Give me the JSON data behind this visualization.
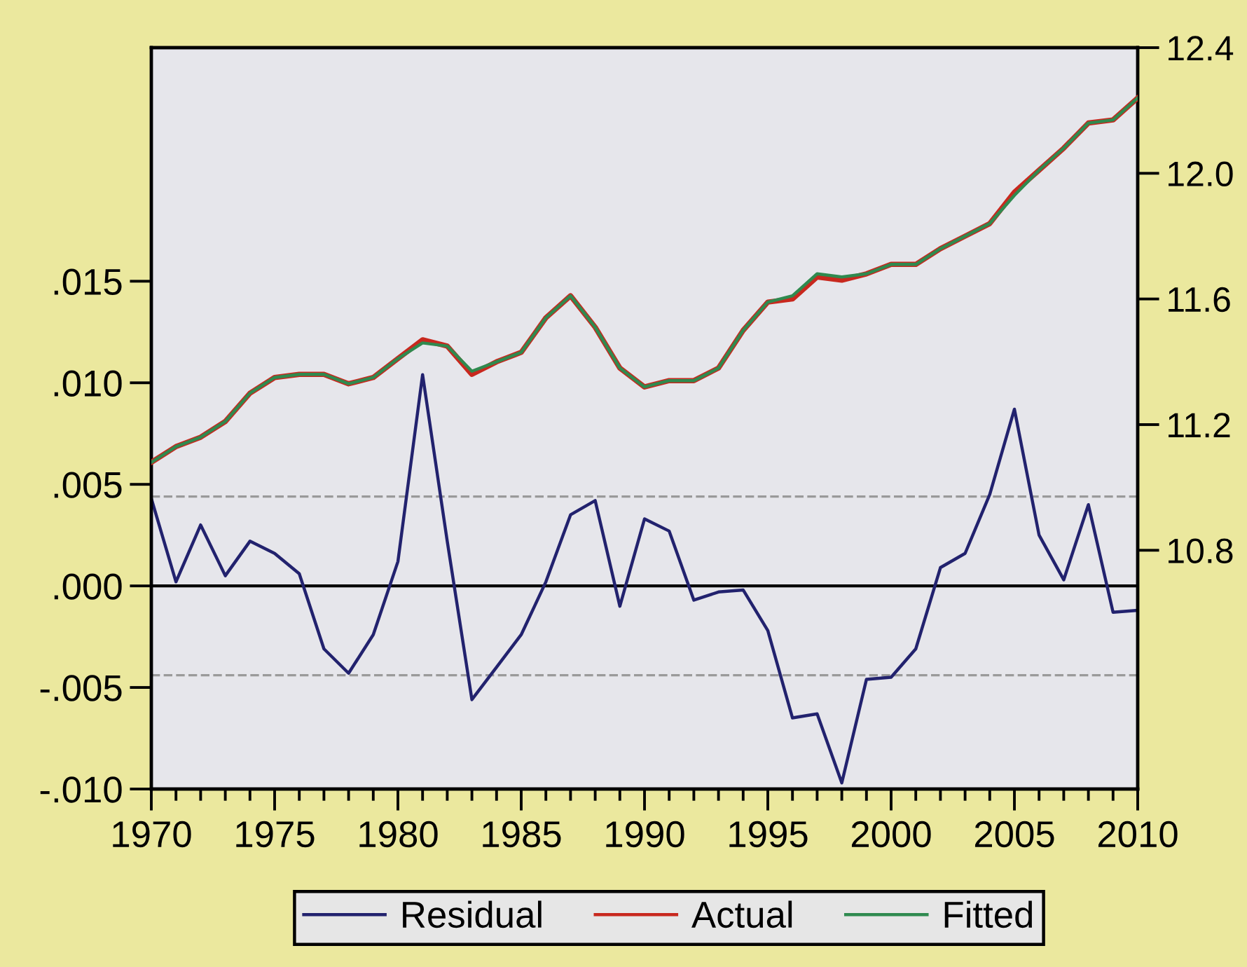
{
  "chart_data": {
    "type": "line",
    "x": [
      1970,
      1971,
      1972,
      1973,
      1974,
      1975,
      1976,
      1977,
      1978,
      1979,
      1980,
      1981,
      1982,
      1983,
      1984,
      1985,
      1986,
      1987,
      1988,
      1989,
      1990,
      1991,
      1992,
      1993,
      1994,
      1995,
      1996,
      1997,
      1998,
      1999,
      2000,
      2001,
      2002,
      2003,
      2004,
      2005,
      2006,
      2007,
      2008,
      2009,
      2010
    ],
    "series": [
      {
        "name": "Residual",
        "color": "#22226e",
        "values": [
          0.0043,
          0.0002,
          0.003,
          0.0005,
          0.0022,
          0.0016,
          0.0006,
          -0.0031,
          -0.0043,
          -0.0024,
          0.0012,
          0.0104,
          0.0022,
          -0.0056,
          -0.004,
          -0.0024,
          0.0002,
          0.0035,
          0.0042,
          -0.001,
          0.0033,
          0.0027,
          -0.0007,
          -0.0003,
          -0.0002,
          -0.0022,
          -0.0065,
          -0.0063,
          -0.0097,
          -0.0046,
          -0.0045,
          -0.0031,
          0.0009,
          0.0016,
          0.0045,
          0.0087,
          0.0025,
          0.0003,
          0.004,
          -0.0013,
          -0.0012
        ]
      },
      {
        "name": "Actual",
        "color": "#c8281e",
        "axis": "y2",
        "values": [
          11.08,
          11.13,
          11.16,
          11.21,
          11.3,
          11.35,
          11.36,
          11.36,
          11.33,
          11.35,
          11.41,
          11.47,
          11.45,
          11.36,
          11.4,
          11.43,
          11.54,
          11.61,
          11.51,
          11.38,
          11.32,
          11.34,
          11.34,
          11.38,
          11.5,
          11.59,
          11.6,
          11.67,
          11.66,
          11.68,
          11.71,
          11.71,
          11.76,
          11.8,
          11.84,
          11.94,
          12.01,
          12.08,
          12.16,
          12.17,
          12.24
        ]
      },
      {
        "name": "Fitted",
        "color": "#2f8a4f",
        "axis": "y2",
        "values": [
          11.08,
          11.13,
          11.16,
          11.21,
          11.3,
          11.35,
          11.36,
          11.36,
          11.33,
          11.35,
          11.41,
          11.46,
          11.45,
          11.37,
          11.4,
          11.43,
          11.54,
          11.61,
          11.51,
          11.38,
          11.32,
          11.34,
          11.34,
          11.38,
          11.5,
          11.59,
          11.61,
          11.68,
          11.67,
          11.68,
          11.71,
          11.71,
          11.76,
          11.8,
          11.84,
          11.93,
          12.01,
          12.08,
          12.16,
          12.17,
          12.24
        ]
      }
    ],
    "xlim": [
      1970,
      2010
    ],
    "xticks": [
      1970,
      {
        "value": 1971,
        "label": null
      },
      {
        "value": 1972,
        "label": null
      },
      {
        "value": 1973,
        "label": null
      },
      {
        "value": 1974,
        "label": null
      },
      1975,
      {
        "value": 1976,
        "label": null
      },
      {
        "value": 1977,
        "label": null
      },
      {
        "value": 1978,
        "label": null
      },
      {
        "value": 1979,
        "label": null
      },
      1980,
      {
        "value": 1981,
        "label": null
      },
      {
        "value": 1982,
        "label": null
      },
      {
        "value": 1983,
        "label": null
      },
      {
        "value": 1984,
        "label": null
      },
      1985,
      {
        "value": 1986,
        "label": null
      },
      {
        "value": 1987,
        "label": null
      },
      {
        "value": 1988,
        "label": null
      },
      {
        "value": 1989,
        "label": null
      },
      1990,
      {
        "value": 1991,
        "label": null
      },
      {
        "value": 1992,
        "label": null
      },
      {
        "value": 1993,
        "label": null
      },
      {
        "value": 1994,
        "label": null
      },
      1995,
      {
        "value": 1996,
        "label": null
      },
      {
        "value": 1997,
        "label": null
      },
      {
        "value": 1998,
        "label": null
      },
      {
        "value": 1999,
        "label": null
      },
      2000,
      {
        "value": 2001,
        "label": null
      },
      {
        "value": 2002,
        "label": null
      },
      {
        "value": 2003,
        "label": null
      },
      {
        "value": 2004,
        "label": null
      },
      2005,
      {
        "value": 2006,
        "label": null
      },
      {
        "value": 2007,
        "label": null
      },
      {
        "value": 2008,
        "label": null
      },
      {
        "value": 2009,
        "label": null
      },
      2010
    ],
    "ylim": [
      -0.01,
      0.0265
    ],
    "yticks": [
      {
        "value": -0.01,
        "label": "-.010"
      },
      {
        "value": -0.005,
        "label": "-.005"
      },
      {
        "value": 0,
        "label": ".000"
      },
      {
        "value": 0.005,
        "label": ".005"
      },
      {
        "value": 0.01,
        "label": ".010"
      },
      {
        "value": 0.015,
        "label": ".015"
      }
    ],
    "y2lim": [
      10.04,
      12.4
    ],
    "y2ticks": [
      10.8,
      11.2,
      11.6,
      {
        "value": 12,
        "label": "12.0"
      },
      12.4
    ],
    "ref_lines": [
      {
        "axis": "y",
        "value": 0,
        "color": "#000000",
        "line_style": "solid"
      },
      {
        "axis": "y",
        "value": 0.0044,
        "color": "#9a9a9a",
        "line_style": "dashed"
      },
      {
        "axis": "y",
        "value": -0.0044,
        "color": "#9a9a9a",
        "line_style": "dashed"
      }
    ],
    "legend": "bottom"
  }
}
